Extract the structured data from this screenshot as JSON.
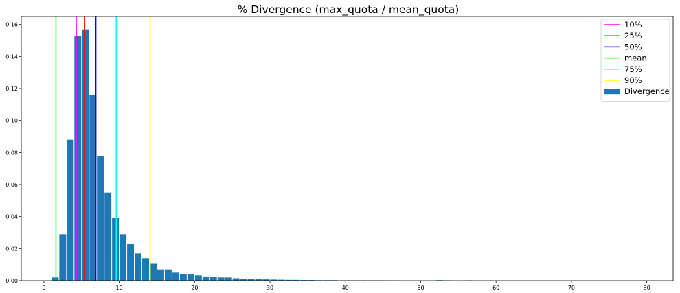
{
  "chart_data": {
    "type": "bar",
    "title": "% Divergence (max_quota / mean_quota)",
    "xlabel": "",
    "ylabel": "",
    "xlim": [
      -3,
      83.5
    ],
    "ylim": [
      0,
      0.165
    ],
    "xticks": [
      0,
      10,
      20,
      30,
      40,
      50,
      60,
      70,
      80
    ],
    "yticks": [
      0.0,
      0.02,
      0.04,
      0.06,
      0.08,
      0.1,
      0.12,
      0.14,
      0.16
    ],
    "grid": false,
    "legend_position": "top-right",
    "bin_width": 1,
    "bars": {
      "name": "Divergence",
      "color": "#1f77b4",
      "bin_left": [
        1,
        2,
        3,
        4,
        5,
        6,
        7,
        8,
        9,
        10,
        11,
        12,
        13,
        14,
        15,
        16,
        17,
        18,
        19,
        20,
        21,
        22,
        23,
        24,
        25,
        26,
        27,
        28,
        29,
        30,
        31,
        32,
        33,
        34,
        35,
        36,
        37,
        38,
        39,
        40,
        41,
        42,
        43,
        44,
        45,
        46,
        52,
        53,
        56
      ],
      "values": [
        0.002,
        0.029,
        0.088,
        0.153,
        0.157,
        0.116,
        0.078,
        0.055,
        0.039,
        0.029,
        0.023,
        0.017,
        0.014,
        0.0105,
        0.007,
        0.007,
        0.005,
        0.004,
        0.004,
        0.0033,
        0.0026,
        0.0022,
        0.002,
        0.002,
        0.0015,
        0.0012,
        0.001,
        0.0009,
        0.0008,
        0.0007,
        0.0006,
        0.0005,
        0.0005,
        0.0004,
        0.0004,
        0.0003,
        0.0003,
        0.0003,
        0.0002,
        0.0002,
        0.0002,
        0.0002,
        0.0002,
        0.0002,
        0.0001,
        0.0001,
        0.0003,
        0.0002,
        0.0002
      ]
    },
    "lines": [
      {
        "name": "10%",
        "x": 4.3,
        "color": "#ff00ff"
      },
      {
        "name": "25%",
        "x": 5.4,
        "color": "#ff0000"
      },
      {
        "name": "50%",
        "x": 6.9,
        "color": "#0000ff"
      },
      {
        "name": "mean",
        "x": 1.6,
        "color": "#00ff00"
      },
      {
        "name": "75%",
        "x": 9.6,
        "color": "#00ffff"
      },
      {
        "name": "90%",
        "x": 14.1,
        "color": "#ffff00"
      }
    ]
  }
}
